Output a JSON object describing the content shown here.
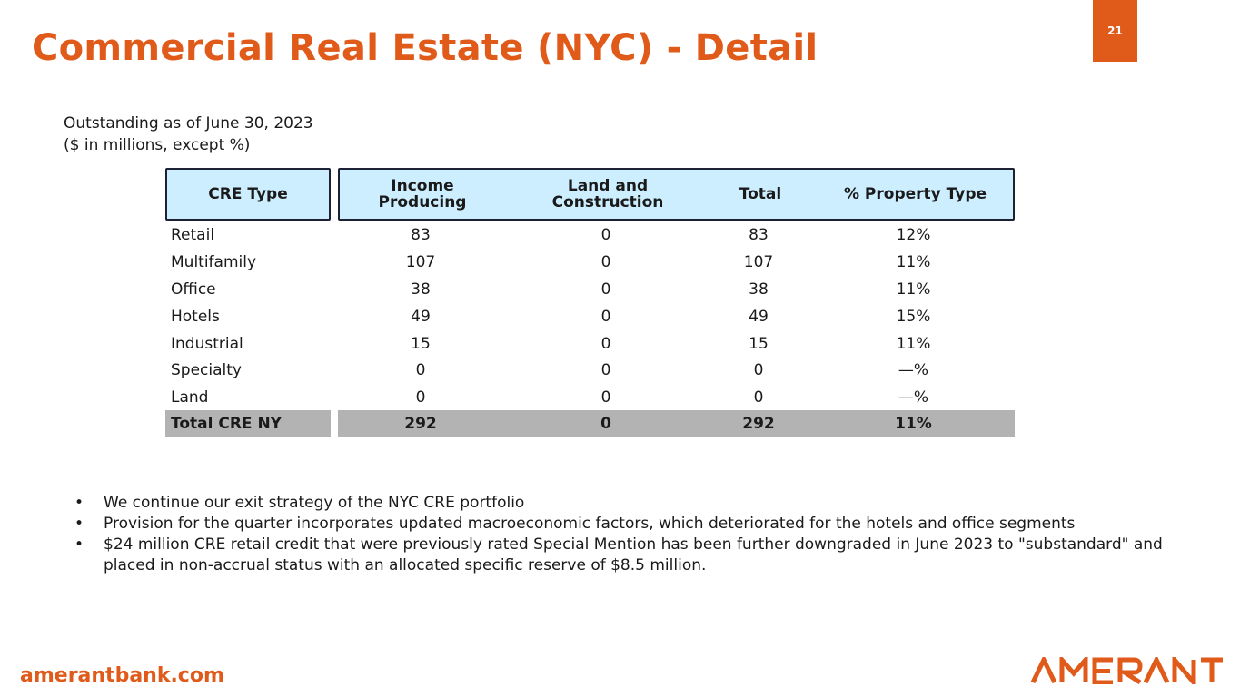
{
  "page": {
    "title": "Commercial Real Estate (NYC) - Detail",
    "page_number": "21",
    "subtitle_line1": "Outstanding as of June 30, 2023",
    "subtitle_line2": "($ in millions, except %)"
  },
  "table": {
    "headers": {
      "type": "CRE Type",
      "income_l1": "Income",
      "income_l2": "Producing",
      "land_l1": "Land and",
      "land_l2": "Construction",
      "total": "Total",
      "pct": "% Property Type"
    },
    "rows": [
      {
        "type": "Retail",
        "income": "83",
        "land": "0",
        "total": "83",
        "pct": "12%"
      },
      {
        "type": "Multifamily",
        "income": "107",
        "land": "0",
        "total": "107",
        "pct": "11%"
      },
      {
        "type": "Office",
        "income": "38",
        "land": "0",
        "total": "38",
        "pct": "11%"
      },
      {
        "type": "Hotels",
        "income": "49",
        "land": "0",
        "total": "49",
        "pct": "15%"
      },
      {
        "type": "Industrial",
        "income": "15",
        "land": "0",
        "total": "15",
        "pct": "11%"
      },
      {
        "type": "Specialty",
        "income": "0",
        "land": "0",
        "total": "0",
        "pct": "—%"
      },
      {
        "type": "Land",
        "income": "0",
        "land": "0",
        "total": "0",
        "pct": "—%"
      }
    ],
    "total_row": {
      "type": "Total CRE NY",
      "income": "292",
      "land": "0",
      "total": "292",
      "pct": "11%"
    }
  },
  "bullets": [
    "We continue our exit strategy of the NYC CRE portfolio",
    "Provision for the quarter incorporates updated macroeconomic factors, which deteriorated for the hotels and office segments",
    "$24 million CRE retail credit that were previously rated Special Mention has been further downgraded in June 2023 to \"substandard\" and placed in non-accrual status with an allocated specific reserve of $8.5 million."
  ],
  "footer": {
    "url": "amerantbank.com",
    "logo_text": "AMERANT",
    "brand_color": "#e05a1a",
    "header_fill": "#cdeeff",
    "total_fill": "#b3b3b3"
  }
}
